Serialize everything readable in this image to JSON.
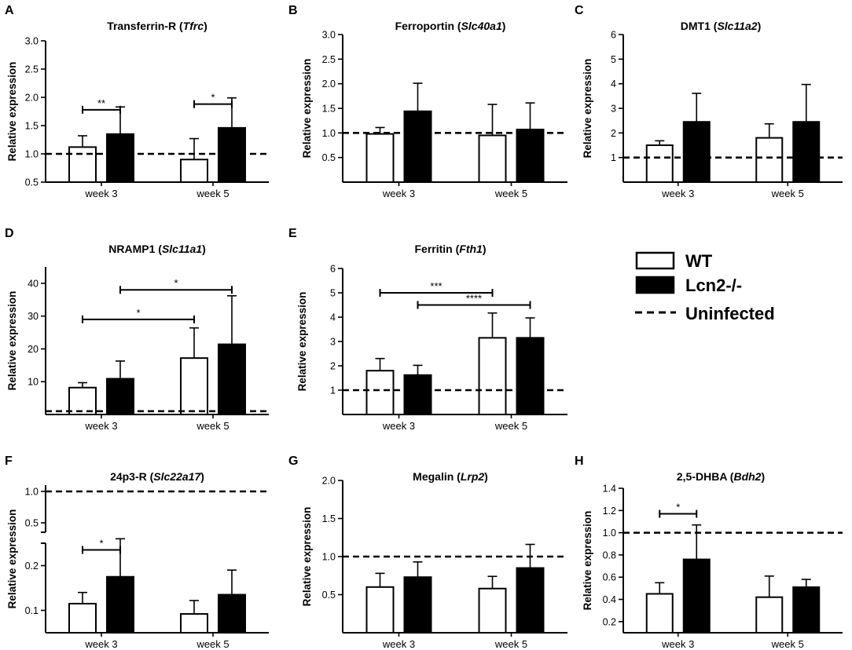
{
  "legend": {
    "wt": "WT",
    "ko": "Lcn2-/-",
    "uninfected": "Uninfected"
  },
  "colors": {
    "wt_fill": "#ffffff",
    "ko_fill": "#000000",
    "stroke": "#000000"
  },
  "chart_data": [
    {
      "panel": "A",
      "type": "bar",
      "title": "Transferrin-R (",
      "gene": "Tfrc",
      "title_end": ")",
      "ylabel": "Relative expression",
      "ylim": [
        0.5,
        3.0
      ],
      "yticks": [
        "3.0",
        "2.5",
        "2.0",
        "1.5",
        "1.0",
        "0.5"
      ],
      "ytick_values": [
        3.0,
        2.5,
        2.0,
        1.5,
        1.0,
        0.5
      ],
      "categories": [
        "week 3",
        "week 5"
      ],
      "series": [
        {
          "name": "WT",
          "values": [
            1.12,
            0.9
          ],
          "errors": [
            0.2,
            0.37
          ]
        },
        {
          "name": "Lcn2-/-",
          "values": [
            1.35,
            1.46
          ],
          "errors": [
            0.48,
            0.53
          ]
        }
      ],
      "baseline": 1.0,
      "significance": [
        {
          "label": "**",
          "from": [
            0,
            0
          ],
          "to": [
            0,
            1
          ],
          "y": 1.78
        },
        {
          "label": "*",
          "from": [
            1,
            0
          ],
          "to": [
            1,
            1
          ],
          "y": 1.88
        }
      ]
    },
    {
      "panel": "B",
      "type": "bar",
      "title": "Ferroportin (",
      "gene": "Slc40a1",
      "title_end": ")",
      "ylabel": "Relative expression",
      "ylim": [
        0.0,
        3.0
      ],
      "yticks": [
        "3.0",
        "2.5",
        "2.0",
        "1.5",
        "1.0",
        "0.5"
      ],
      "ytick_values": [
        3.0,
        2.5,
        2.0,
        1.5,
        1.0,
        0.5
      ],
      "categories": [
        "week 3",
        "week 5"
      ],
      "series": [
        {
          "name": "WT",
          "values": [
            0.98,
            0.95
          ],
          "errors": [
            0.13,
            0.63
          ]
        },
        {
          "name": "Lcn2-/-",
          "values": [
            1.44,
            1.07
          ],
          "errors": [
            0.57,
            0.54
          ]
        }
      ],
      "baseline": 1.0,
      "significance": []
    },
    {
      "panel": "C",
      "type": "bar",
      "title": "DMT1 (",
      "gene": "Slc11a2",
      "title_end": ")",
      "ylabel": "Relative expression",
      "ylim": [
        0,
        6
      ],
      "yticks": [
        "6",
        "5",
        "4",
        "3",
        "2",
        "1"
      ],
      "ytick_values": [
        6,
        5,
        4,
        3,
        2,
        1
      ],
      "categories": [
        "week 3",
        "week 5"
      ],
      "series": [
        {
          "name": "WT",
          "values": [
            1.5,
            1.8
          ],
          "errors": [
            0.18,
            0.57
          ]
        },
        {
          "name": "Lcn2-/-",
          "values": [
            2.45,
            2.45
          ],
          "errors": [
            1.16,
            1.52
          ]
        }
      ],
      "baseline": 1.0,
      "significance": []
    },
    {
      "panel": "D",
      "type": "bar",
      "title": "NRAMP1 (",
      "gene": "Slc11a1",
      "title_end": ")",
      "ylabel": "Relative expression",
      "ylim": [
        0,
        45
      ],
      "yticks": [
        "40",
        "30",
        "20",
        "10"
      ],
      "ytick_values": [
        40,
        30,
        20,
        10
      ],
      "categories": [
        "week 3",
        "week 5"
      ],
      "series": [
        {
          "name": "WT",
          "values": [
            8.2,
            17.2
          ],
          "errors": [
            1.5,
            9.2
          ]
        },
        {
          "name": "Lcn2-/-",
          "values": [
            10.9,
            21.4
          ],
          "errors": [
            5.4,
            14.8
          ]
        }
      ],
      "baseline": 1.0,
      "significance": [
        {
          "label": "*",
          "from": [
            0,
            0
          ],
          "to": [
            1,
            0
          ],
          "y": 29.0
        },
        {
          "label": "*",
          "from": [
            0,
            1
          ],
          "to": [
            1,
            1
          ],
          "y": 38.0
        }
      ]
    },
    {
      "panel": "E",
      "type": "bar",
      "title": "Ferritin (",
      "gene": "Fth1",
      "title_end": ")",
      "ylabel": "Relative expression",
      "ylim": [
        0,
        6
      ],
      "yticks": [
        "6",
        "5",
        "4",
        "3",
        "2",
        "1"
      ],
      "ytick_values": [
        6,
        5,
        4,
        3,
        2,
        1
      ],
      "categories": [
        "week 3",
        "week 5"
      ],
      "series": [
        {
          "name": "WT",
          "values": [
            1.8,
            3.15
          ],
          "errors": [
            0.5,
            1.02
          ]
        },
        {
          "name": "Lcn2-/-",
          "values": [
            1.62,
            3.15
          ],
          "errors": [
            0.4,
            0.82
          ]
        }
      ],
      "baseline": 1.0,
      "significance": [
        {
          "label": "***",
          "from": [
            0,
            0
          ],
          "to": [
            1,
            0
          ],
          "y": 5.0
        },
        {
          "label": "****",
          "from": [
            0,
            1
          ],
          "to": [
            1,
            1
          ],
          "y": 4.5
        }
      ]
    },
    {
      "panel": "F",
      "type": "bar",
      "title": "24p3-R (",
      "gene": "Slc22a17",
      "title_end": ")",
      "ylabel": "Relative expression",
      "broken_axis": true,
      "lower_ylim": [
        0.05,
        0.25
      ],
      "upper_ylim": [
        0.35,
        1.1
      ],
      "yticks": [
        "1.0",
        "0.5",
        "0.2",
        "0.1"
      ],
      "ytick_values": [
        1.0,
        0.5,
        0.2,
        0.1
      ],
      "categories": [
        "week 3",
        "week 5"
      ],
      "series": [
        {
          "name": "WT",
          "values": [
            0.115,
            0.092
          ],
          "errors": [
            0.025,
            0.03
          ]
        },
        {
          "name": "Lcn2-/-",
          "values": [
            0.175,
            0.135
          ],
          "errors": [
            0.085,
            0.055
          ]
        }
      ],
      "baseline": 1.0,
      "significance": [
        {
          "label": "*",
          "from": [
            0,
            0
          ],
          "to": [
            0,
            1
          ],
          "y": 0.235
        }
      ]
    },
    {
      "panel": "G",
      "type": "bar",
      "title": "Megalin (",
      "gene": "Lrp2",
      "title_end": ")",
      "ylabel": "Relative expression",
      "ylim": [
        0.0,
        2.0
      ],
      "yticks": [
        "2.0",
        "1.5",
        "1.0",
        "0.5"
      ],
      "ytick_values": [
        2.0,
        1.5,
        1.0,
        0.5
      ],
      "categories": [
        "week 3",
        "week 5"
      ],
      "series": [
        {
          "name": "WT",
          "values": [
            0.6,
            0.58
          ],
          "errors": [
            0.18,
            0.16
          ]
        },
        {
          "name": "Lcn2-/-",
          "values": [
            0.73,
            0.85
          ],
          "errors": [
            0.2,
            0.31
          ]
        }
      ],
      "baseline": 1.0,
      "significance": []
    },
    {
      "panel": "H",
      "type": "bar",
      "title": "2,5-DHBA (",
      "gene": "Bdh2",
      "title_end": ")",
      "ylabel": "Relative expression",
      "ylim": [
        0.1,
        1.4
      ],
      "yticks": [
        "1.4",
        "1.2",
        "1.0",
        "0.8",
        "0.6",
        "0.4",
        "0.2"
      ],
      "ytick_values": [
        1.4,
        1.2,
        1.0,
        0.8,
        0.6,
        0.4,
        0.2
      ],
      "categories": [
        "week 3",
        "week 5"
      ],
      "series": [
        {
          "name": "WT",
          "values": [
            0.45,
            0.42
          ],
          "errors": [
            0.1,
            0.19
          ]
        },
        {
          "name": "Lcn2-/-",
          "values": [
            0.76,
            0.51
          ],
          "errors": [
            0.31,
            0.07
          ]
        }
      ],
      "baseline": 1.0,
      "significance": [
        {
          "label": "*",
          "from": [
            0,
            0
          ],
          "to": [
            0,
            1
          ],
          "y": 1.17
        }
      ]
    }
  ]
}
